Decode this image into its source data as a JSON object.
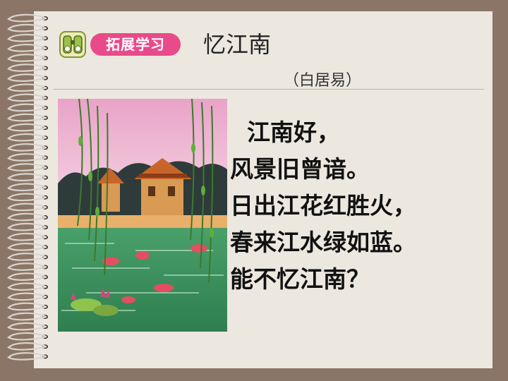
{
  "section": {
    "badge_label": "拓展学习",
    "badge_icon": "binoculars-icon"
  },
  "poem": {
    "title": "忆江南",
    "author": "（白居易）",
    "lines": [
      "江南好，",
      "风景旧曾谙。",
      "日出江花红胜火，",
      "春来江水绿如蓝。",
      "能不忆江南？"
    ]
  },
  "illustration": {
    "description_icon": "jiangnan-landscape-illustration"
  },
  "colors": {
    "background": "#8b7566",
    "page": "#ece8df",
    "badge": "#e94a8a"
  }
}
